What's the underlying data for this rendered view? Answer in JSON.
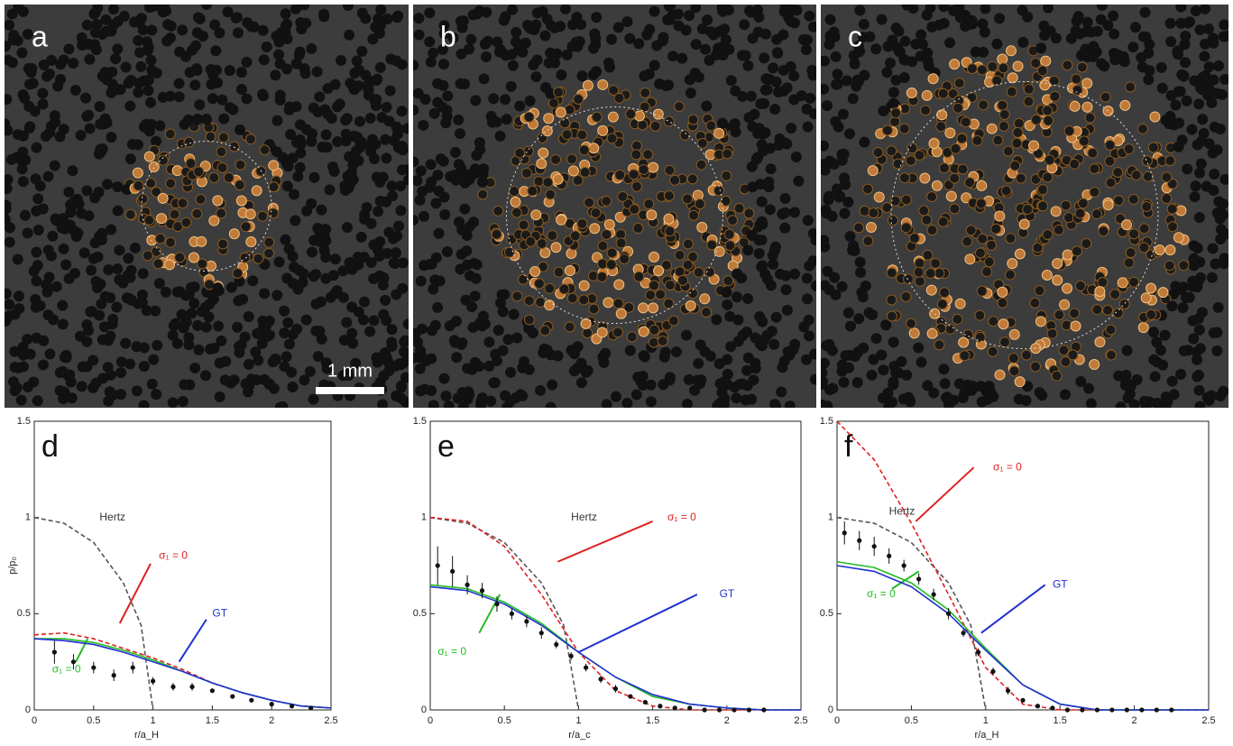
{
  "panels": [
    {
      "label": "a"
    },
    {
      "label": "b"
    },
    {
      "label": "c"
    }
  ],
  "scale_bar": "1 mm",
  "chart_data": [
    {
      "type": "line",
      "panel": "d",
      "x_label": "r/a_H",
      "y_label": "p/p₀",
      "xlim": [
        0,
        2.5
      ],
      "ylim": [
        0,
        1.5
      ],
      "xticks": [
        0,
        0.5,
        1,
        1.5,
        2,
        2.5
      ],
      "yticks": [
        0,
        0.5,
        1,
        1.5
      ],
      "series": [
        {
          "name": "Hertz",
          "color": "#555555",
          "dash": true,
          "x": [
            0,
            0.25,
            0.5,
            0.75,
            0.9,
            1
          ],
          "values": [
            1,
            0.97,
            0.87,
            0.66,
            0.44,
            0
          ]
        },
        {
          "name": "σ₁ = 0",
          "color": "#e02020",
          "dash": true,
          "x": [
            0,
            0.25,
            0.5,
            0.75,
            1,
            1.25,
            1.5,
            1.75,
            2,
            2.25,
            2.5
          ],
          "values": [
            0.39,
            0.4,
            0.37,
            0.32,
            0.27,
            0.21,
            0.14,
            0.09,
            0.05,
            0.02,
            0.01
          ]
        },
        {
          "name": "σ₁ = 0",
          "color": "#22bb22",
          "dash": false,
          "x": [
            0,
            0.25,
            0.5,
            0.75,
            1,
            1.25,
            1.5,
            1.75,
            2,
            2.25,
            2.5
          ],
          "values": [
            0.37,
            0.37,
            0.35,
            0.31,
            0.26,
            0.2,
            0.14,
            0.09,
            0.05,
            0.02,
            0.01
          ]
        },
        {
          "name": "GT",
          "color": "#2030d0",
          "dash": false,
          "x": [
            0,
            0.25,
            0.5,
            0.75,
            1,
            1.25,
            1.5,
            1.75,
            2,
            2.25,
            2.5
          ],
          "values": [
            0.37,
            0.36,
            0.34,
            0.3,
            0.25,
            0.2,
            0.14,
            0.09,
            0.05,
            0.02,
            0.01
          ]
        }
      ],
      "points": {
        "x": [
          0.17,
          0.33,
          0.5,
          0.67,
          0.83,
          1,
          1.17,
          1.33,
          1.5,
          1.67,
          1.83,
          2,
          2.17,
          2.33
        ],
        "values": [
          0.3,
          0.25,
          0.22,
          0.18,
          0.22,
          0.15,
          0.12,
          0.12,
          0.1,
          0.07,
          0.05,
          0.03,
          0.02,
          0.01
        ],
        "errors": [
          0.06,
          0.04,
          0.03,
          0.03,
          0.03,
          0.02,
          0.02,
          0.02,
          0.01,
          0.01,
          0.01,
          0.01,
          0.01,
          0.01
        ]
      }
    },
    {
      "type": "line",
      "panel": "e",
      "x_label": "r/a_c",
      "xlim": [
        0,
        2.5
      ],
      "ylim": [
        0,
        1.5
      ],
      "xticks": [
        0,
        0.5,
        1,
        1.5,
        2,
        2.5
      ],
      "yticks": [
        0,
        0.5,
        1,
        1.5
      ],
      "series": [
        {
          "name": "Hertz",
          "color": "#555555",
          "dash": true,
          "x": [
            0,
            0.25,
            0.5,
            0.75,
            0.9,
            1
          ],
          "values": [
            1,
            0.97,
            0.87,
            0.66,
            0.44,
            0
          ]
        },
        {
          "name": "σ₁ = 0",
          "color": "#e02020",
          "dash": true,
          "x": [
            0,
            0.25,
            0.5,
            0.75,
            1,
            1.25,
            1.5,
            1.75,
            2,
            2.25,
            2.5
          ],
          "values": [
            1,
            0.98,
            0.85,
            0.6,
            0.3,
            0.1,
            0.02,
            0,
            0,
            0,
            0
          ]
        },
        {
          "name": "σ₁ = 0",
          "color": "#22bb22",
          "dash": false,
          "x": [
            0,
            0.25,
            0.5,
            0.75,
            1,
            1.25,
            1.5,
            1.75,
            2,
            2.25,
            2.5
          ],
          "values": [
            0.65,
            0.63,
            0.56,
            0.45,
            0.3,
            0.17,
            0.07,
            0.03,
            0.01,
            0,
            0
          ]
        },
        {
          "name": "GT",
          "color": "#2030d0",
          "dash": false,
          "x": [
            0,
            0.25,
            0.5,
            0.75,
            1,
            1.25,
            1.5,
            1.75,
            2,
            2.25,
            2.5
          ],
          "values": [
            0.64,
            0.62,
            0.55,
            0.44,
            0.3,
            0.17,
            0.08,
            0.03,
            0.01,
            0,
            0
          ]
        }
      ],
      "points": {
        "x": [
          0.05,
          0.15,
          0.25,
          0.35,
          0.45,
          0.55,
          0.65,
          0.75,
          0.85,
          0.95,
          1.05,
          1.15,
          1.25,
          1.35,
          1.45,
          1.55,
          1.65,
          1.75,
          1.85,
          1.95,
          2.05,
          2.15,
          2.25
        ],
        "values": [
          0.75,
          0.72,
          0.65,
          0.62,
          0.55,
          0.5,
          0.46,
          0.4,
          0.34,
          0.28,
          0.22,
          0.16,
          0.11,
          0.07,
          0.04,
          0.02,
          0.01,
          0.01,
          0,
          0,
          0,
          0,
          0
        ],
        "errors": [
          0.1,
          0.08,
          0.05,
          0.04,
          0.04,
          0.03,
          0.03,
          0.03,
          0.02,
          0.02,
          0.02,
          0.02,
          0.02,
          0.01,
          0.01,
          0.01,
          0.01,
          0.01,
          0.01,
          0.01,
          0.01,
          0.01,
          0.01
        ]
      }
    },
    {
      "type": "line",
      "panel": "f",
      "x_label": "r/a_H",
      "xlim": [
        0,
        2.5
      ],
      "ylim": [
        0,
        1.5
      ],
      "xticks": [
        0,
        0.5,
        1,
        1.5,
        2,
        2.5
      ],
      "yticks": [
        0,
        0.5,
        1,
        1.5
      ],
      "series": [
        {
          "name": "Hertz",
          "color": "#555555",
          "dash": true,
          "x": [
            0,
            0.25,
            0.5,
            0.75,
            0.9,
            1
          ],
          "values": [
            1,
            0.97,
            0.87,
            0.66,
            0.44,
            0
          ]
        },
        {
          "name": "σ₁ = 0",
          "color": "#e02020",
          "dash": true,
          "x": [
            0,
            0.25,
            0.5,
            0.75,
            1,
            1.25,
            1.5,
            1.75,
            2,
            2.25,
            2.5
          ],
          "values": [
            1.5,
            1.3,
            0.97,
            0.6,
            0.22,
            0.03,
            0,
            0,
            0,
            0,
            0
          ]
        },
        {
          "name": "σ₁ = 0",
          "color": "#22bb22",
          "dash": false,
          "x": [
            0,
            0.25,
            0.5,
            0.75,
            1,
            1.25,
            1.5,
            1.75,
            2,
            2.25,
            2.5
          ],
          "values": [
            0.77,
            0.74,
            0.66,
            0.52,
            0.32,
            0.13,
            0.03,
            0,
            0,
            0,
            0
          ]
        },
        {
          "name": "GT",
          "color": "#2030d0",
          "dash": false,
          "x": [
            0,
            0.25,
            0.5,
            0.75,
            1,
            1.25,
            1.5,
            1.75,
            2,
            2.25,
            2.5
          ],
          "values": [
            0.75,
            0.72,
            0.64,
            0.5,
            0.31,
            0.13,
            0.03,
            0,
            0,
            0,
            0
          ]
        }
      ],
      "points": {
        "x": [
          0.05,
          0.15,
          0.25,
          0.35,
          0.45,
          0.55,
          0.65,
          0.75,
          0.85,
          0.95,
          1.05,
          1.15,
          1.25,
          1.35,
          1.45,
          1.55,
          1.65,
          1.75,
          1.85,
          1.95,
          2.05,
          2.15,
          2.25
        ],
        "values": [
          0.92,
          0.88,
          0.85,
          0.8,
          0.75,
          0.68,
          0.6,
          0.5,
          0.4,
          0.3,
          0.2,
          0.1,
          0.05,
          0.02,
          0.01,
          0,
          0,
          0,
          0,
          0,
          0,
          0,
          0
        ],
        "errors": [
          0.06,
          0.05,
          0.05,
          0.04,
          0.03,
          0.03,
          0.03,
          0.03,
          0.02,
          0.02,
          0.02,
          0.02,
          0.01,
          0.01,
          0.01,
          0.01,
          0.01,
          0.01,
          0.01,
          0.01,
          0.01,
          0.01,
          0.01
        ]
      }
    }
  ]
}
